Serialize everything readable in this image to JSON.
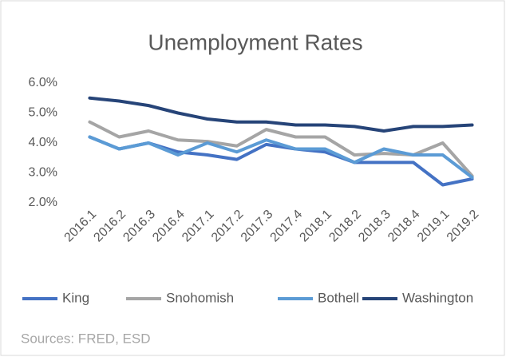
{
  "chart_data": {
    "type": "line",
    "title": "Unemployment Rates",
    "categories": [
      "2016.1",
      "2016.2",
      "2016.3",
      "2016.4",
      "2017.1",
      "2017.2",
      "2017.3",
      "2017.4",
      "2018.1",
      "2018.2",
      "2018.3",
      "2018.4",
      "2019.1",
      "2019.2"
    ],
    "series": [
      {
        "name": "King",
        "color": "#4472c4",
        "values": [
          4.2,
          3.8,
          4.0,
          3.7,
          3.6,
          3.45,
          3.95,
          3.8,
          3.7,
          3.35,
          3.35,
          3.35,
          2.6,
          2.8
        ]
      },
      {
        "name": "Snohomish",
        "color": "#a5a5a5",
        "values": [
          4.7,
          4.2,
          4.4,
          4.1,
          4.05,
          3.9,
          4.45,
          4.2,
          4.2,
          3.6,
          3.65,
          3.6,
          4.0,
          2.9
        ]
      },
      {
        "name": "Bothell",
        "color": "#5b9bd5",
        "values": [
          4.2,
          3.8,
          4.0,
          3.6,
          4.0,
          3.7,
          4.1,
          3.8,
          3.8,
          3.35,
          3.8,
          3.6,
          3.6,
          2.85
        ]
      },
      {
        "name": "Washington",
        "color": "#264478",
        "values": [
          5.5,
          5.4,
          5.25,
          5.0,
          4.8,
          4.7,
          4.7,
          4.6,
          4.6,
          4.55,
          4.4,
          4.55,
          4.55,
          4.6
        ]
      }
    ],
    "ylim": [
      2,
      6
    ],
    "yticks": [
      {
        "value": 2,
        "label": "2.0%"
      },
      {
        "value": 3,
        "label": "3.0%"
      },
      {
        "value": 4,
        "label": "4.0%"
      },
      {
        "value": 5,
        "label": "5.0%"
      },
      {
        "value": 6,
        "label": "6.0%"
      }
    ],
    "grid": false,
    "legend": "bottom",
    "source": "Sources: FRED, ESD"
  }
}
